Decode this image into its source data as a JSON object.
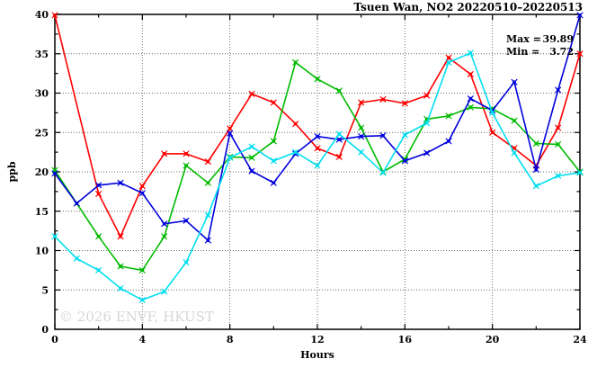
{
  "title": "Tsuen Wan, NO2 20220510–20220513",
  "annotation": {
    "max_key": "Max =",
    "max_val": "39.89",
    "min_key": "Min =",
    "min_val": "3.72"
  },
  "watermark": "© 2026 ENVF, HKUST",
  "colors": {
    "axis": "#000000",
    "grid": "#666666",
    "red": "#ff0000",
    "green": "#00bb00",
    "blue": "#0000dd",
    "cyan": "#00dff0",
    "watermark": "#d6d6d6"
  },
  "chart_data": {
    "type": "line",
    "title": "Tsuen Wan, NO2 20220510–20220513",
    "xlabel": "Hours",
    "ylabel": "ppb",
    "xlim": [
      0,
      24
    ],
    "ylim": [
      0,
      40
    ],
    "grid": true,
    "legend_position": "none",
    "x_tick_labels": [
      "0",
      "4",
      "8",
      "12",
      "16",
      "20",
      "24"
    ],
    "x_major_ticks": [
      0,
      4,
      8,
      12,
      16,
      20,
      24
    ],
    "x_minor_step": 2,
    "y_tick_labels": [
      "0",
      "5",
      "10",
      "15",
      "20",
      "25",
      "30",
      "35",
      "40"
    ],
    "y_major_ticks": [
      0,
      5,
      10,
      15,
      20,
      25,
      30,
      35,
      40
    ],
    "y_minor_step": 2.5,
    "stats": {
      "max": 39.89,
      "min": 3.72
    },
    "x": [
      0,
      1,
      2,
      3,
      4,
      5,
      6,
      7,
      8,
      9,
      10,
      11,
      12,
      13,
      14,
      15,
      16,
      17,
      18,
      19,
      20,
      21,
      22,
      23,
      24
    ],
    "series": [
      {
        "name": "series-red",
        "color": "#ff0000",
        "values": [
          39.89,
          null,
          17.2,
          11.8,
          18.2,
          22.3,
          22.3,
          21.3,
          25.5,
          29.9,
          28.8,
          26.1,
          23.0,
          21.9,
          28.8,
          29.2,
          28.7,
          29.7,
          34.5,
          32.4,
          25.0,
          23.0,
          20.8,
          25.6,
          35.0
        ]
      },
      {
        "name": "series-green",
        "color": "#00bb00",
        "values": [
          20.2,
          16.0,
          11.8,
          8.0,
          7.5,
          11.8,
          20.8,
          18.6,
          21.9,
          21.8,
          23.9,
          33.9,
          31.8,
          30.3,
          25.6,
          20.0,
          21.6,
          26.7,
          27.1,
          28.2,
          28.0,
          26.5,
          23.6,
          23.5,
          20.0
        ]
      },
      {
        "name": "series-blue",
        "color": "#0000dd",
        "values": [
          19.8,
          16.0,
          18.3,
          18.6,
          17.3,
          13.4,
          13.8,
          11.3,
          24.9,
          20.1,
          18.6,
          22.3,
          24.5,
          24.1,
          24.5,
          24.6,
          21.4,
          22.4,
          23.9,
          29.3,
          27.8,
          31.4,
          20.3,
          30.4,
          39.9
        ]
      },
      {
        "name": "series-cyan",
        "color": "#00dff0",
        "values": [
          11.8,
          9.0,
          7.5,
          5.2,
          3.72,
          4.8,
          8.5,
          14.5,
          21.8,
          23.2,
          21.4,
          22.5,
          20.8,
          24.8,
          22.5,
          19.9,
          24.7,
          26.2,
          33.9,
          35.1,
          27.5,
          22.4,
          18.2,
          19.5,
          19.9
        ]
      }
    ]
  }
}
